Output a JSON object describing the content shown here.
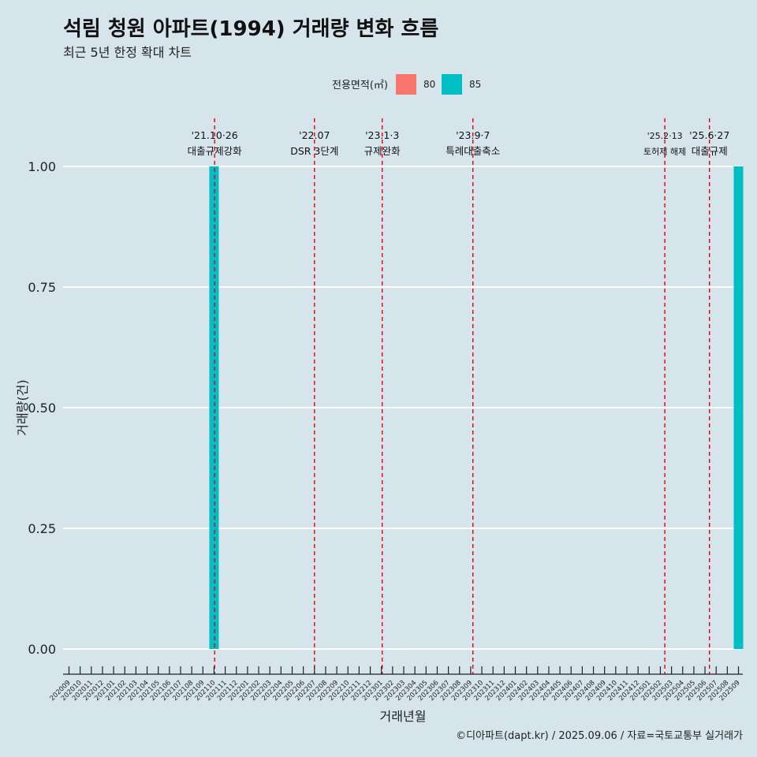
{
  "title": "석림 청원 아파트(1994) 거래량 변화 흐름",
  "subtitle": "최근 5년 한정 확대 차트",
  "caption": "©디아파트(dapt.kr) / 2025.09.06 / 자료=국토교통부 실거래가",
  "colors": {
    "background": "#d6e4eb",
    "series_80": "#f8766d",
    "series_85": "#00bfc4",
    "event_line": "#e8000b",
    "grid": "#ffffff"
  },
  "chart_data": {
    "type": "bar",
    "xlabel": "거래년월",
    "ylabel": "거래량(건)",
    "ylim": [
      0,
      1
    ],
    "y_ticks": [
      "0.00",
      "0.25",
      "0.50",
      "0.75",
      "1.00"
    ],
    "legend": {
      "title": "전용면적(㎡)",
      "placement": "top",
      "entries": [
        {
          "label": "80",
          "color": "#f8766d"
        },
        {
          "label": "85",
          "color": "#00bfc4"
        }
      ]
    },
    "categories": [
      "202009",
      "202010",
      "202011",
      "202012",
      "202101",
      "202102",
      "202103",
      "202104",
      "202105",
      "202106",
      "202107",
      "202108",
      "202109",
      "202110",
      "202111",
      "202112",
      "202201",
      "202202",
      "202203",
      "202204",
      "202205",
      "202206",
      "202207",
      "202208",
      "202209",
      "202210",
      "202211",
      "202212",
      "202301",
      "202302",
      "202303",
      "202304",
      "202305",
      "202306",
      "202307",
      "202308",
      "202309",
      "202310",
      "202311",
      "202312",
      "202401",
      "202402",
      "202403",
      "202404",
      "202405",
      "202406",
      "202407",
      "202408",
      "202409",
      "202410",
      "202411",
      "202412",
      "202501",
      "202502",
      "202503",
      "202504",
      "202505",
      "202506",
      "202507",
      "202508",
      "202509"
    ],
    "series": [
      {
        "name": "80",
        "points": []
      },
      {
        "name": "85",
        "points": [
          {
            "x": "202110",
            "y": 1
          },
          {
            "x": "202509",
            "y": 1
          }
        ]
      }
    ],
    "events": [
      {
        "date": "'21.10·26",
        "label": "대출규제강화",
        "index": 13.05
      },
      {
        "date": "'22.07",
        "label": "DSR 3단계",
        "index": 22
      },
      {
        "date": "'23.1·3",
        "label": "규제완화",
        "index": 28.07
      },
      {
        "date": "'23.9·7",
        "label": "특례대출축소",
        "index": 36.2
      },
      {
        "date": "'25.2·13",
        "label": "토허제 해제",
        "index": 53.4
      },
      {
        "date": "'25.6·27",
        "label": "대출규제",
        "index": 57.4
      }
    ]
  }
}
